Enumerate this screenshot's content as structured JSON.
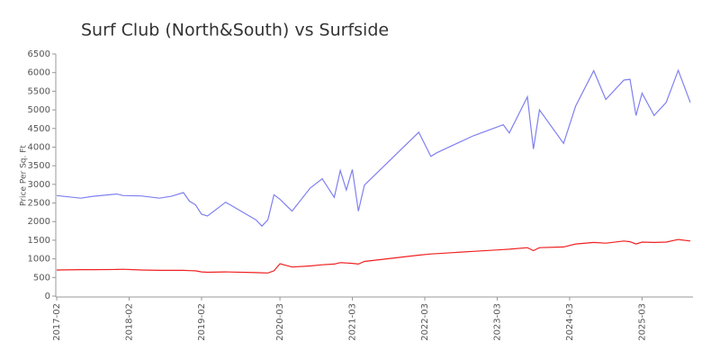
{
  "chart_data": {
    "type": "line",
    "title": "Surf Club (North&South) vs Surfside",
    "y_label": "Price Per Sq. Ft",
    "x": [
      "2017-02",
      "2017-06",
      "2017-08",
      "2017-12",
      "2018-01",
      "2018-04",
      "2018-07",
      "2018-09",
      "2018-11",
      "2018-12",
      "2019-01",
      "2019-02",
      "2019-03",
      "2019-06",
      "2019-11",
      "2019-12",
      "2020-01",
      "2020-02",
      "2020-03",
      "2020-05",
      "2020-08",
      "2020-10",
      "2020-12",
      "2021-01",
      "2021-02",
      "2021-03",
      "2021-04",
      "2021-05",
      "2022-02",
      "2022-04",
      "2022-05",
      "2022-11",
      "2023-04",
      "2023-05",
      "2023-08",
      "2023-09",
      "2023-10",
      "2024-02",
      "2024-04",
      "2024-07",
      "2024-09",
      "2024-12",
      "2025-01",
      "2025-02",
      "2025-03",
      "2025-05",
      "2025-07",
      "2025-09",
      "2025-11"
    ],
    "series": [
      {
        "color": "#8080f0",
        "values": [
          2700,
          2630,
          2680,
          2740,
          2700,
          2690,
          2630,
          2680,
          2780,
          2550,
          2450,
          2200,
          2150,
          2520,
          2050,
          1880,
          2050,
          2720,
          2600,
          2280,
          2900,
          3150,
          2650,
          3370,
          2850,
          3400,
          2280,
          2980,
          4400,
          3750,
          3850,
          4300,
          4600,
          4380,
          5350,
          3950,
          5000,
          4100,
          5100,
          6050,
          5280,
          5800,
          5820,
          4850,
          5450,
          4850,
          5200,
          6060,
          5200
        ]
      },
      {
        "color": "#f02020",
        "values": [
          700,
          710,
          710,
          715,
          720,
          700,
          690,
          690,
          690,
          685,
          680,
          650,
          640,
          650,
          630,
          625,
          620,
          680,
          870,
          780,
          810,
          840,
          860,
          900,
          890,
          880,
          860,
          930,
          1100,
          1130,
          1140,
          1200,
          1250,
          1260,
          1300,
          1220,
          1300,
          1320,
          1400,
          1440,
          1420,
          1480,
          1460,
          1400,
          1450,
          1440,
          1450,
          1520,
          1480
        ]
      }
    ],
    "xlim": [
      "2017-02",
      "2025-11"
    ],
    "xticks": [
      "2017-02",
      "2018-02",
      "2019-02",
      "2020-03",
      "2021-03",
      "2022-03",
      "2023-03",
      "2024-03",
      "2025-03"
    ],
    "ylim": [
      0,
      6500
    ],
    "yticks": [
      0,
      500,
      1000,
      1500,
      2000,
      2500,
      3000,
      3500,
      4000,
      4500,
      5000,
      5500,
      6000,
      6500
    ]
  }
}
